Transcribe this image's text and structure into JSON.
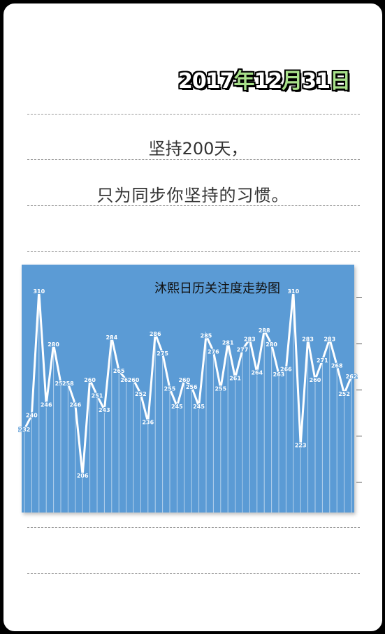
{
  "header": {
    "date_parts": [
      {
        "text": "2017",
        "accent": false
      },
      {
        "text": "年",
        "accent": true
      },
      {
        "text": "12",
        "accent": false
      },
      {
        "text": "月",
        "accent": true
      },
      {
        "text": "31",
        "accent": false
      },
      {
        "text": "日",
        "accent": true
      }
    ]
  },
  "message": {
    "line1": "坚持200天，",
    "line2": "只为同步你坚持的习惯。"
  },
  "colors": {
    "chart_background": "#5b9bd5",
    "line": "#ffffff",
    "date_accent": "#a8e08a"
  },
  "chart_data": {
    "type": "line",
    "title": "沐熙日历关注度走势图",
    "xlabel": "",
    "ylabel": "",
    "ylim": [
      185,
      325
    ],
    "grid": true,
    "values": [
      232,
      240,
      310,
      246,
      280,
      258,
      258,
      246,
      206,
      260,
      251,
      243,
      284,
      265,
      260,
      260,
      252,
      236,
      286,
      275,
      255,
      245,
      260,
      256,
      245,
      285,
      276,
      255,
      281,
      261,
      277,
      283,
      264,
      288,
      280,
      263,
      266,
      310,
      223,
      283,
      260,
      271,
      283,
      268,
      252,
      262
    ],
    "labels": [
      "232",
      "240",
      "310",
      "246",
      "280",
      "258",
      "258",
      "246",
      "206",
      "260",
      "251",
      "243",
      "284",
      "265",
      "260",
      "260",
      "252",
      "236",
      "286",
      "275",
      "255",
      "245",
      "260",
      "256",
      "245",
      "285",
      "276",
      "255",
      "281",
      "261",
      "277",
      "283",
      "264",
      "288",
      "280",
      "263",
      "266",
      "310",
      "223",
      "283",
      "260",
      "271",
      "283",
      "268",
      "252",
      "262"
    ]
  }
}
